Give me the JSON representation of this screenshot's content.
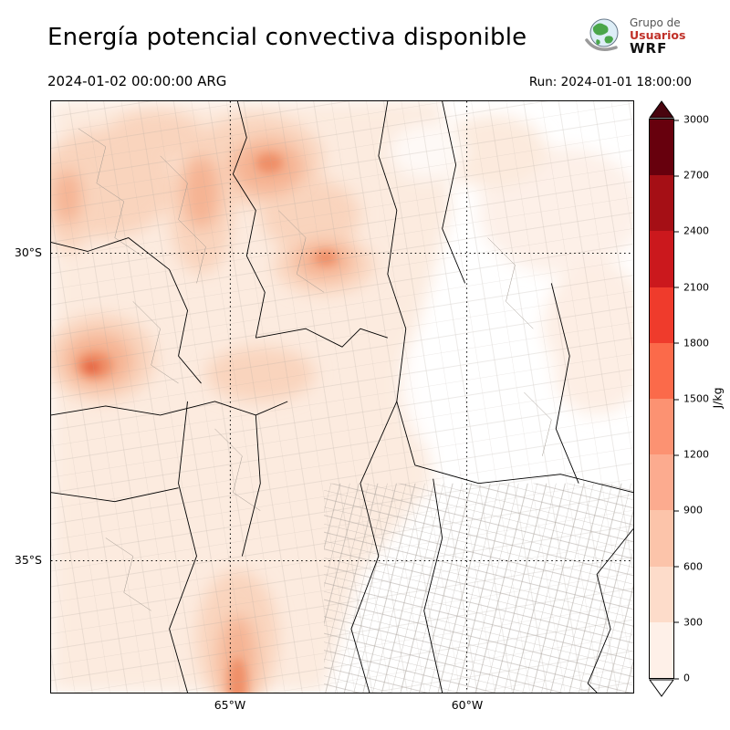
{
  "header": {
    "title": "Energía potencial convectiva disponible",
    "valid_time": "2024-01-02 00:00:00 ARG",
    "run_label": "Run: 2024-01-01 18:00:00",
    "logo": {
      "line1": "Grupo de",
      "line2": "Usuarios",
      "line3": "WRF"
    }
  },
  "theme": {
    "logo_red": "#c03028"
  },
  "map": {
    "lat_labels": [
      "30°S",
      "35°S"
    ],
    "lon_labels": [
      "65°W",
      "60°W"
    ]
  },
  "colorbar": {
    "unit": "J/kg",
    "tick_labels": [
      "3000",
      "2700",
      "2400",
      "2100",
      "1800",
      "1500",
      "1200",
      "900",
      "600",
      "300",
      "0"
    ],
    "segment_colors_top_to_bottom": [
      "#67000d",
      "#a50f15",
      "#cb181d",
      "#ef3b2c",
      "#fb6a4a",
      "#fc9272",
      "#fcab8f",
      "#fcc4aa",
      "#fddcca",
      "#fef0e8"
    ],
    "over_color": "#49050f",
    "under_color": "#ffffff"
  }
}
